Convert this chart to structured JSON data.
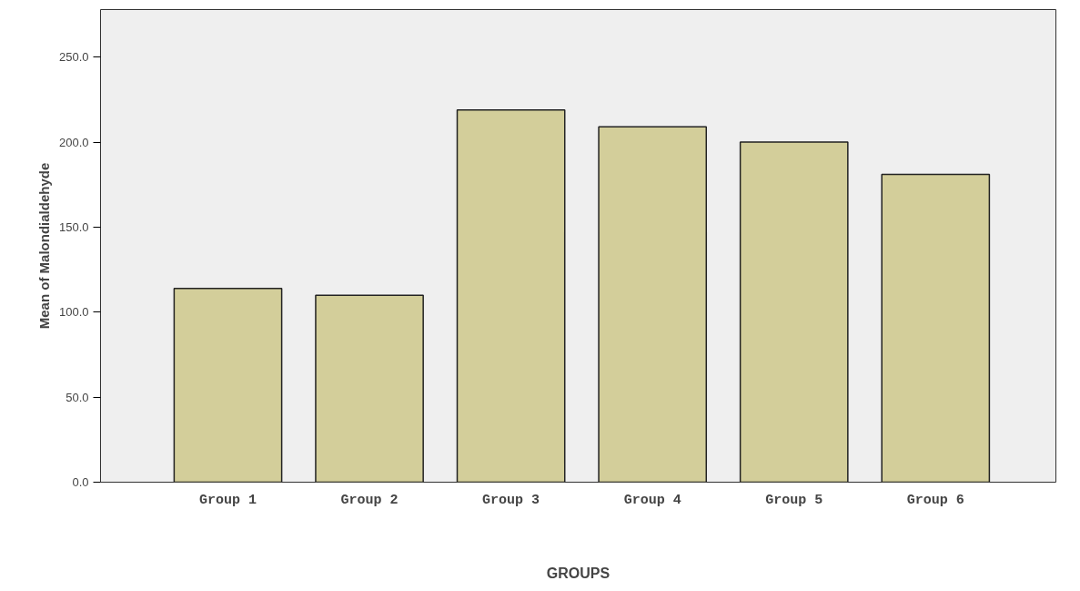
{
  "chart_data": {
    "type": "bar",
    "xlabel": "GROUPS",
    "ylabel": "Mean of Malondialdehyde",
    "categories": [
      "Group 1",
      "Group 2",
      "Group 3",
      "Group 4",
      "Group 5",
      "Group 6"
    ],
    "values": [
      114,
      110,
      219,
      209,
      200,
      181
    ],
    "color": "#d3ce9a",
    "ylim": [
      0,
      278
    ],
    "yticks": [
      {
        "value": 0,
        "label": "0.0"
      },
      {
        "value": 50,
        "label": "50.0"
      },
      {
        "value": 100,
        "label": "100.0"
      },
      {
        "value": 150,
        "label": "150.0"
      },
      {
        "value": 200,
        "label": "200.0"
      },
      {
        "value": 250,
        "label": "250.0"
      }
    ],
    "grid": false
  }
}
